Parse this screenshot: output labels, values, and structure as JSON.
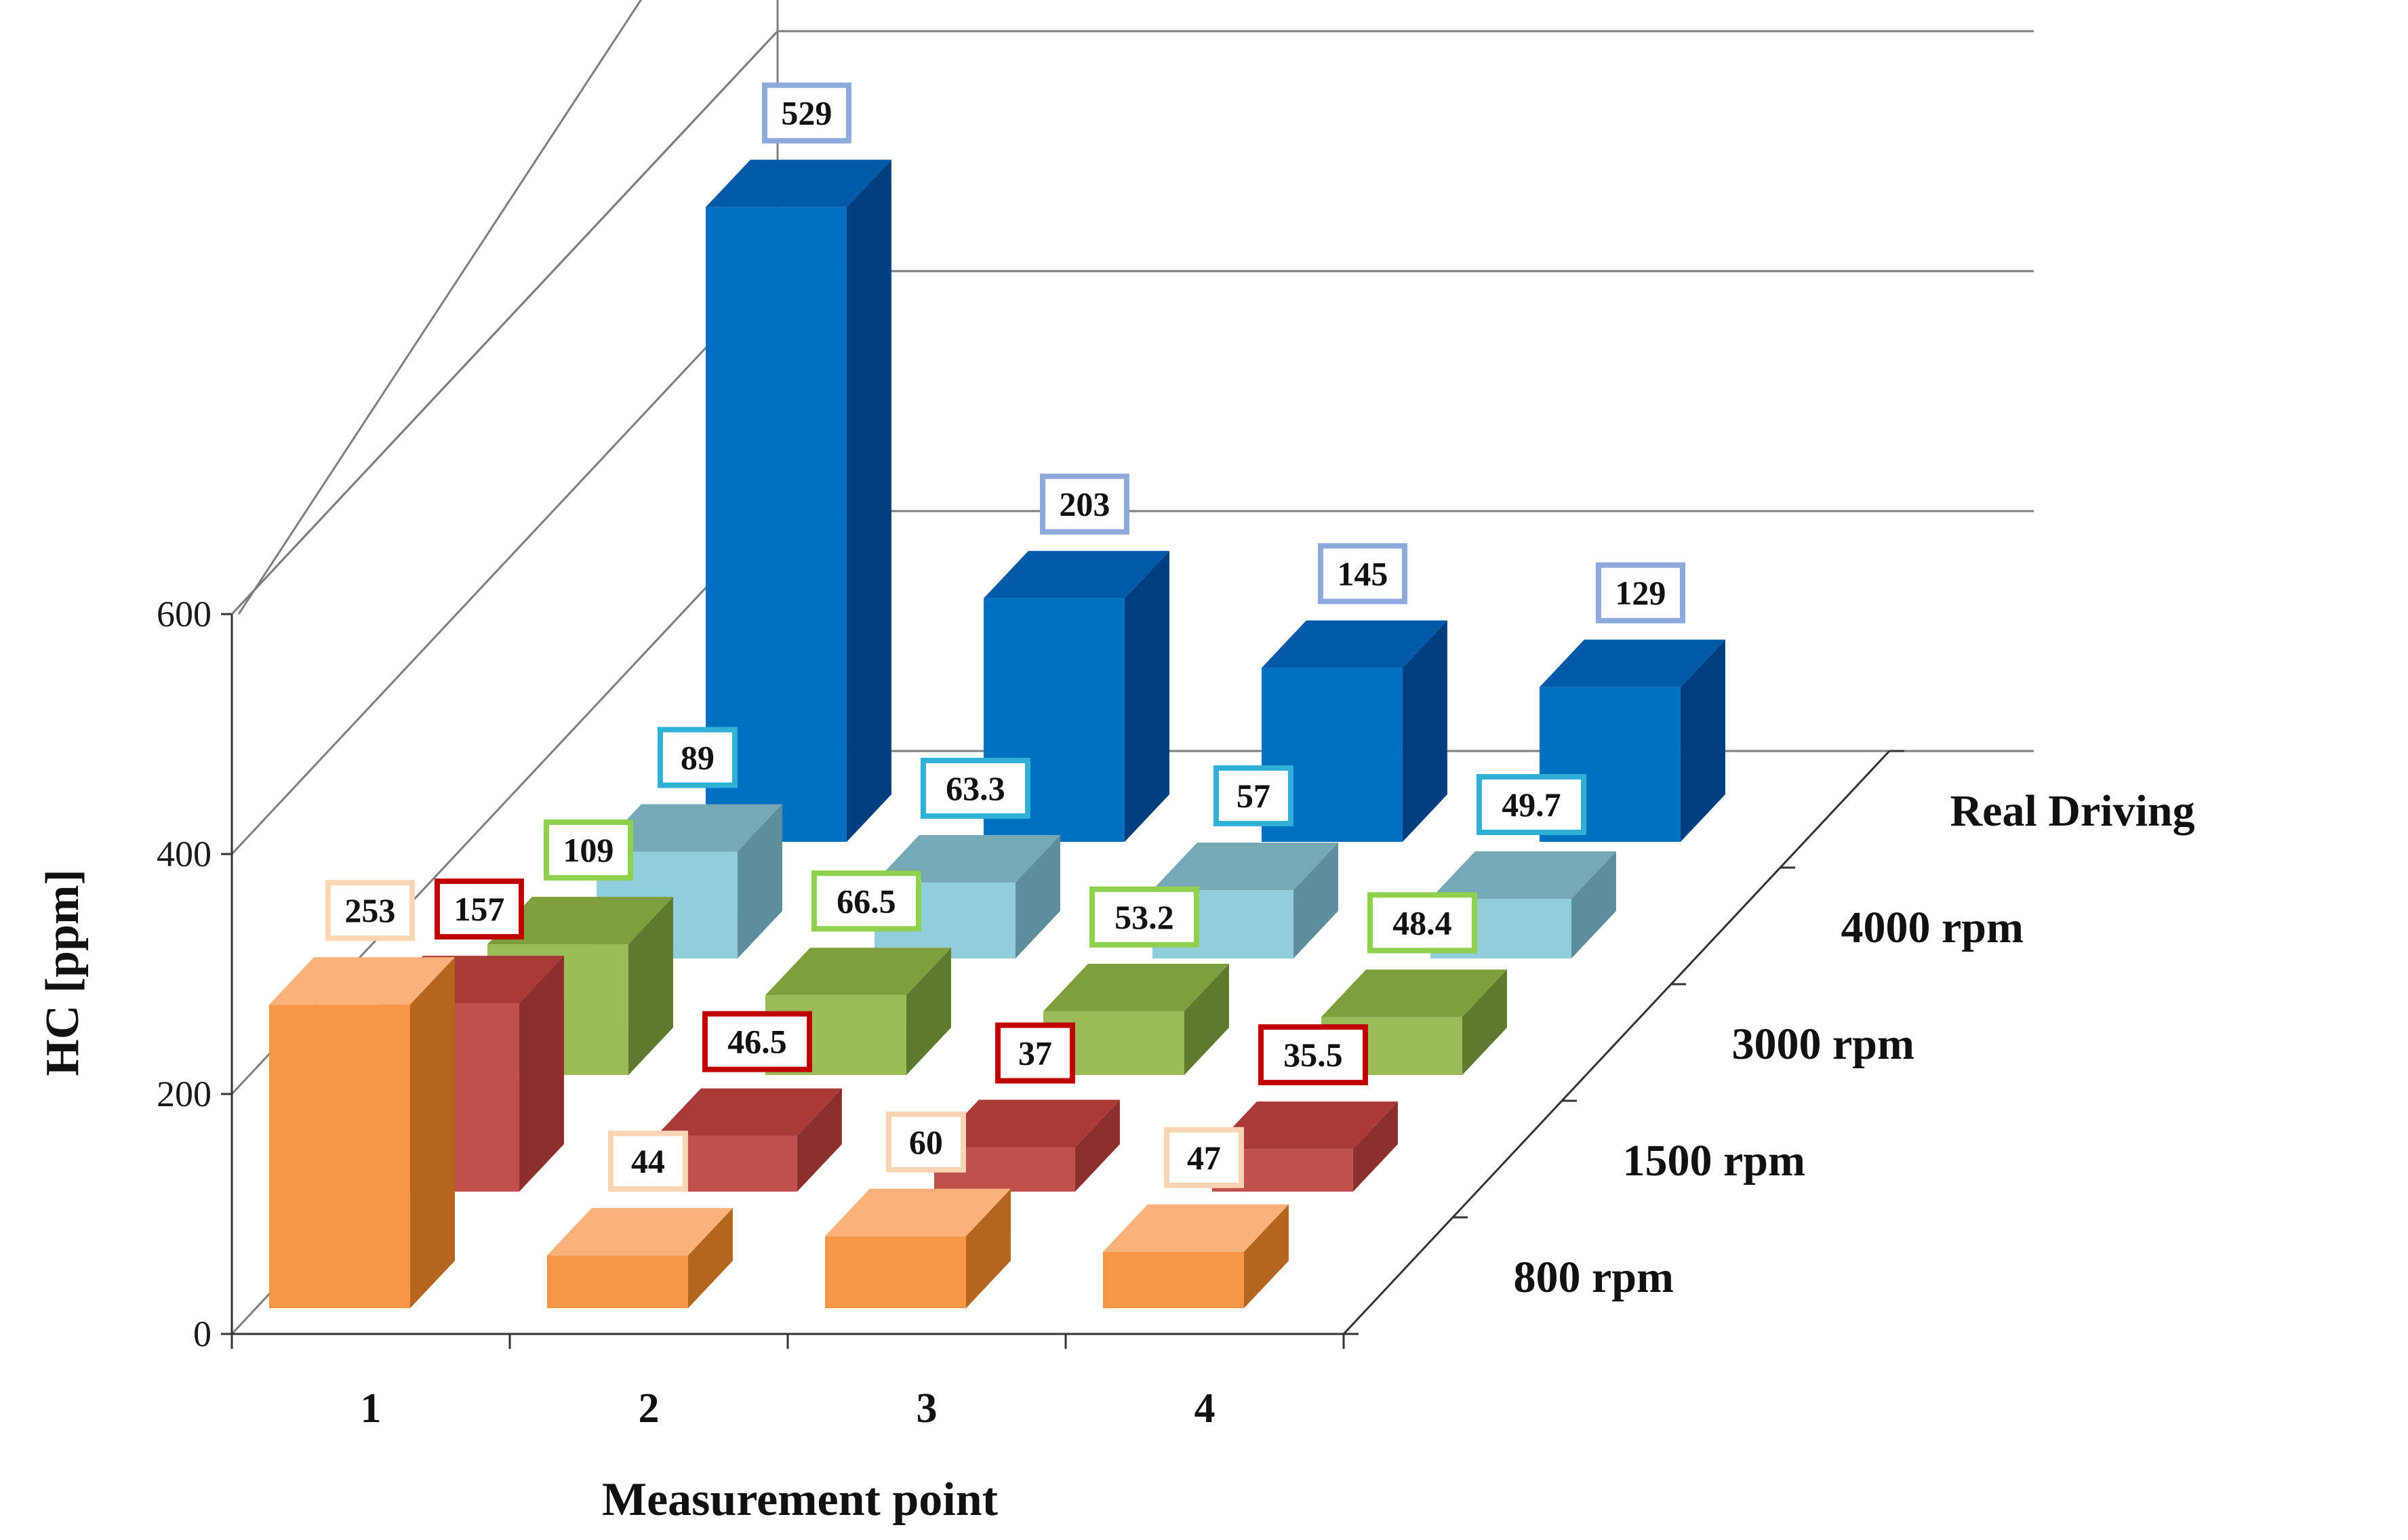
{
  "chart_data": {
    "type": "bar",
    "subtype": "3d-column",
    "ylabel": "HC [ppm]",
    "xlabel": "Measurement point",
    "ylim": [
      0,
      600
    ],
    "yticks": [
      "0",
      "200",
      "400",
      "600"
    ],
    "categories": [
      "1",
      "2",
      "3",
      "4"
    ],
    "series": [
      {
        "name": "800 rpm",
        "values": [
          253,
          44,
          60,
          47
        ],
        "labels": [
          "253",
          "44",
          "60",
          "47"
        ],
        "color": "#f79646",
        "side": "#b5651d",
        "top": "#fab27a",
        "label_border": "#fbd4b4"
      },
      {
        "name": "1500 rpm",
        "values": [
          157,
          46.5,
          37,
          35.5
        ],
        "labels": [
          "157",
          "46.5",
          "37",
          "35.5"
        ],
        "color": "#c0504d",
        "side": "#8c2f2d",
        "top": "#a93a37",
        "label_border": "#c00000"
      },
      {
        "name": "3000 rpm",
        "values": [
          109,
          66.5,
          53.2,
          48.4
        ],
        "labels": [
          "109",
          "66.5",
          "53.2",
          "48.4"
        ],
        "color": "#9bbb59",
        "side": "#5f7a2e",
        "top": "#7f9f3f",
        "label_border": "#8fd14f"
      },
      {
        "name": "4000 rpm",
        "values": [
          89,
          63.3,
          57,
          49.7
        ],
        "labels": [
          "89",
          "63.3",
          "57",
          "49.7"
        ],
        "color": "#92cddc",
        "side": "#5e8e9b",
        "top": "#76a8b6",
        "label_border": "#31b0d5"
      },
      {
        "name": "Real Driving",
        "values": [
          529,
          203,
          145,
          129
        ],
        "labels": [
          "529",
          "203",
          "145",
          "129"
        ],
        "color": "#0070c0",
        "side": "#003f7f",
        "top": "#005aa8",
        "label_border": "#8eaadb"
      }
    ]
  }
}
